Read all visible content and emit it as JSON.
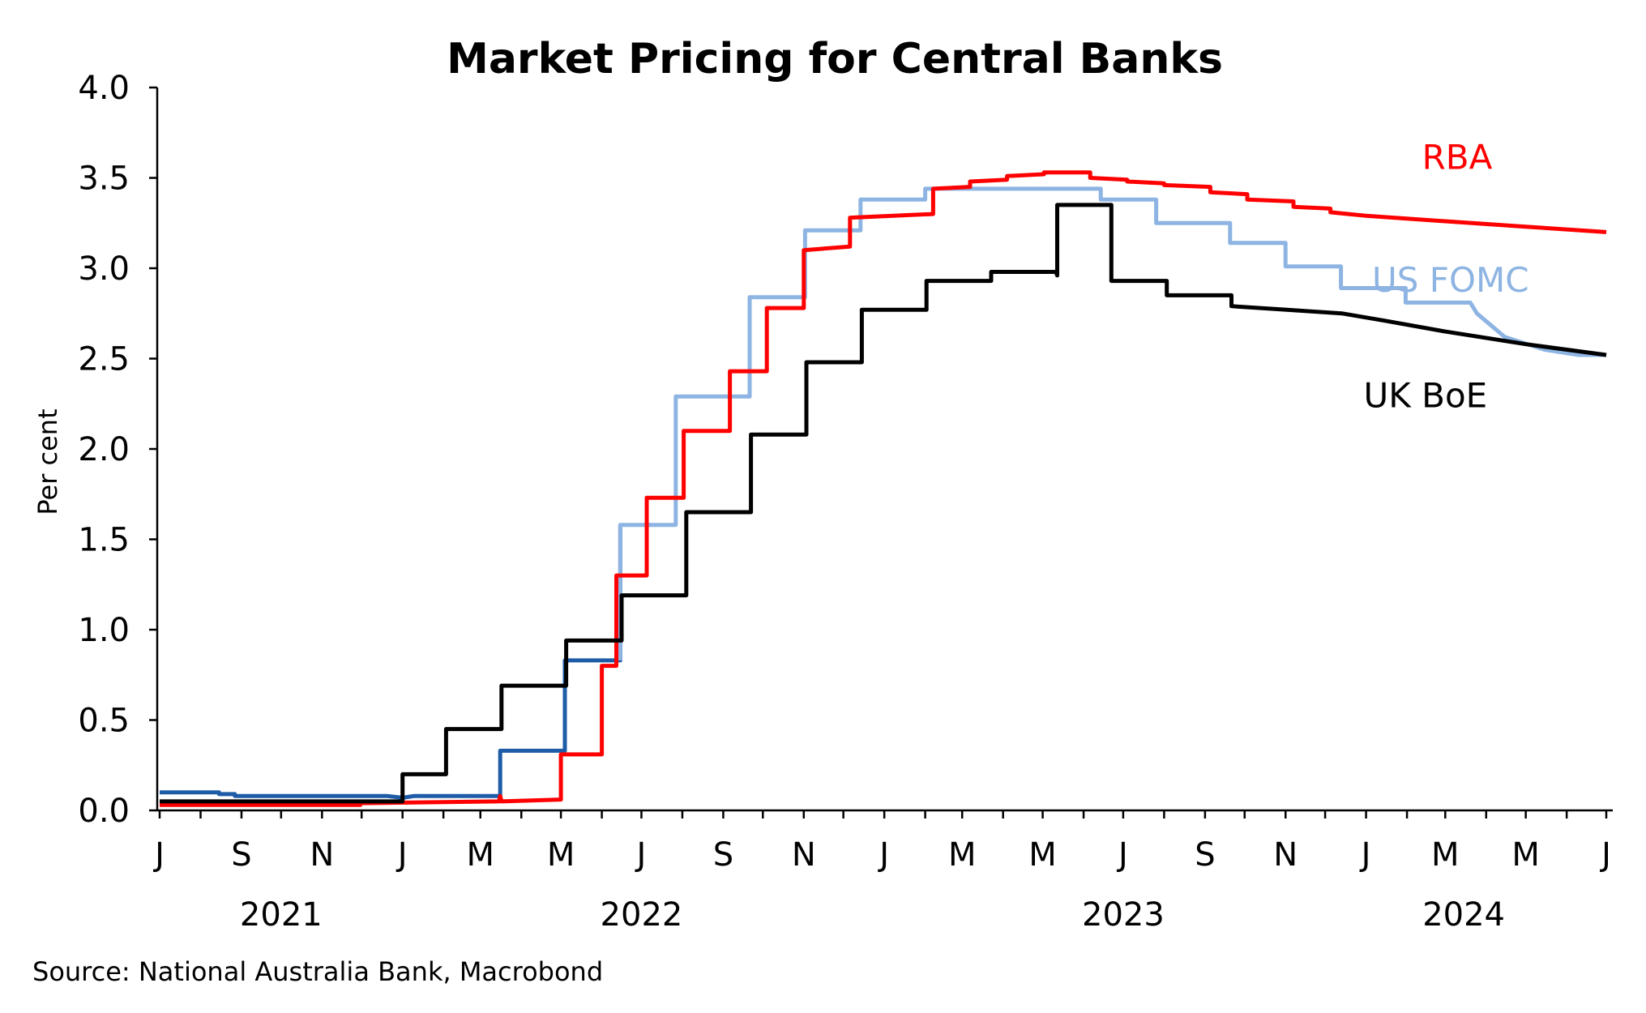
{
  "chart_data": {
    "type": "line",
    "title": "Market Pricing for Central Banks",
    "ylabel": "Per cent",
    "xlabel": "",
    "ylim": [
      0,
      4.0
    ],
    "yticks": [
      "0.0",
      "0.5",
      "1.0",
      "1.5",
      "2.0",
      "2.5",
      "3.0",
      "3.5",
      "4.0"
    ],
    "xlim": [
      "2021-07-01",
      "2024-07-01"
    ],
    "month_ticks": [
      {
        "date": "2021-07-01",
        "label": "J"
      },
      {
        "date": "2021-08-01",
        "label": ""
      },
      {
        "date": "2021-09-01",
        "label": "S"
      },
      {
        "date": "2021-10-01",
        "label": ""
      },
      {
        "date": "2021-11-01",
        "label": "N"
      },
      {
        "date": "2021-12-01",
        "label": ""
      },
      {
        "date": "2022-01-01",
        "label": "J"
      },
      {
        "date": "2022-02-01",
        "label": ""
      },
      {
        "date": "2022-03-01",
        "label": "M"
      },
      {
        "date": "2022-04-01",
        "label": ""
      },
      {
        "date": "2022-05-01",
        "label": "M"
      },
      {
        "date": "2022-06-01",
        "label": ""
      },
      {
        "date": "2022-07-01",
        "label": "J"
      },
      {
        "date": "2022-08-01",
        "label": ""
      },
      {
        "date": "2022-09-01",
        "label": "S"
      },
      {
        "date": "2022-10-01",
        "label": ""
      },
      {
        "date": "2022-11-01",
        "label": "N"
      },
      {
        "date": "2022-12-01",
        "label": ""
      },
      {
        "date": "2023-01-01",
        "label": "J"
      },
      {
        "date": "2023-02-01",
        "label": ""
      },
      {
        "date": "2023-03-01",
        "label": "M"
      },
      {
        "date": "2023-04-01",
        "label": ""
      },
      {
        "date": "2023-05-01",
        "label": "M"
      },
      {
        "date": "2023-06-01",
        "label": ""
      },
      {
        "date": "2023-07-01",
        "label": "J"
      },
      {
        "date": "2023-08-01",
        "label": ""
      },
      {
        "date": "2023-09-01",
        "label": "S"
      },
      {
        "date": "2023-10-01",
        "label": ""
      },
      {
        "date": "2023-11-01",
        "label": "N"
      },
      {
        "date": "2023-12-01",
        "label": ""
      },
      {
        "date": "2024-01-01",
        "label": "J"
      },
      {
        "date": "2024-02-01",
        "label": ""
      },
      {
        "date": "2024-03-01",
        "label": "M"
      },
      {
        "date": "2024-04-01",
        "label": ""
      },
      {
        "date": "2024-05-01",
        "label": "M"
      },
      {
        "date": "2024-06-01",
        "label": ""
      },
      {
        "date": "2024-07-01",
        "label": "J"
      }
    ],
    "year_labels": [
      {
        "label": "2021",
        "date": "2021-10-01"
      },
      {
        "label": "2022",
        "date": "2022-07-01"
      },
      {
        "label": "2023",
        "date": "2023-07-01"
      },
      {
        "label": "2024",
        "date": "2024-03-15"
      }
    ],
    "grid": false,
    "legend": "inline labels at right",
    "series": [
      {
        "name": "RBA",
        "color": "#ff0000",
        "label_date": "2024-03-10",
        "label_y": 3.55,
        "points": [
          [
            "2021-07-01",
            0.03
          ],
          [
            "2021-11-30",
            0.03
          ],
          [
            "2021-11-30",
            0.04
          ],
          [
            "2022-03-15",
            0.05
          ],
          [
            "2022-03-16",
            0.08
          ],
          [
            "2022-03-17",
            0.05
          ],
          [
            "2022-05-01",
            0.06
          ],
          [
            "2022-05-01",
            0.31
          ],
          [
            "2022-06-01",
            0.31
          ],
          [
            "2022-06-01",
            0.8
          ],
          [
            "2022-06-12",
            0.8
          ],
          [
            "2022-06-12",
            1.3
          ],
          [
            "2022-07-05",
            1.3
          ],
          [
            "2022-07-05",
            1.73
          ],
          [
            "2022-08-02",
            1.73
          ],
          [
            "2022-08-02",
            2.1
          ],
          [
            "2022-09-06",
            2.1
          ],
          [
            "2022-09-06",
            2.43
          ],
          [
            "2022-10-04",
            2.43
          ],
          [
            "2022-10-04",
            2.78
          ],
          [
            "2022-11-01",
            2.78
          ],
          [
            "2022-11-01",
            3.1
          ],
          [
            "2022-12-06",
            3.12
          ],
          [
            "2022-12-06",
            3.28
          ],
          [
            "2023-02-07",
            3.3
          ],
          [
            "2023-02-07",
            3.44
          ],
          [
            "2023-03-07",
            3.45
          ],
          [
            "2023-03-07",
            3.48
          ],
          [
            "2023-04-04",
            3.49
          ],
          [
            "2023-04-04",
            3.51
          ],
          [
            "2023-05-02",
            3.52
          ],
          [
            "2023-05-02",
            3.53
          ],
          [
            "2023-06-06",
            3.53
          ],
          [
            "2023-06-06",
            3.5
          ],
          [
            "2023-07-04",
            3.49
          ],
          [
            "2023-07-04",
            3.48
          ],
          [
            "2023-08-01",
            3.47
          ],
          [
            "2023-08-01",
            3.46
          ],
          [
            "2023-09-05",
            3.45
          ],
          [
            "2023-09-05",
            3.42
          ],
          [
            "2023-10-03",
            3.41
          ],
          [
            "2023-10-03",
            3.38
          ],
          [
            "2023-11-07",
            3.37
          ],
          [
            "2023-11-07",
            3.34
          ],
          [
            "2023-12-05",
            3.33
          ],
          [
            "2023-12-05",
            3.31
          ],
          [
            "2024-01-01",
            3.29
          ],
          [
            "2024-03-01",
            3.26
          ],
          [
            "2024-05-01",
            3.23
          ],
          [
            "2024-07-01",
            3.2
          ]
        ]
      },
      {
        "name": "US FOMC",
        "color": "#8db4e2",
        "early_color": "#1f5ca8",
        "early_until": "2022-07-01",
        "label_date": "2024-03-05",
        "label_y": 2.87,
        "points": [
          [
            "2021-07-01",
            0.1
          ],
          [
            "2021-08-15",
            0.1
          ],
          [
            "2021-08-15",
            0.09
          ],
          [
            "2021-08-27",
            0.09
          ],
          [
            "2021-08-27",
            0.08
          ],
          [
            "2021-12-20",
            0.08
          ],
          [
            "2022-01-01",
            0.07
          ],
          [
            "2022-01-10",
            0.08
          ],
          [
            "2022-03-16",
            0.08
          ],
          [
            "2022-03-16",
            0.33
          ],
          [
            "2022-05-04",
            0.33
          ],
          [
            "2022-05-04",
            0.83
          ],
          [
            "2022-06-15",
            0.83
          ],
          [
            "2022-06-15",
            1.58
          ],
          [
            "2022-07-27",
            1.58
          ],
          [
            "2022-07-27",
            2.29
          ],
          [
            "2022-09-21",
            2.29
          ],
          [
            "2022-09-21",
            2.84
          ],
          [
            "2022-11-02",
            2.84
          ],
          [
            "2022-11-02",
            3.21
          ],
          [
            "2022-12-14",
            3.21
          ],
          [
            "2022-12-14",
            3.38
          ],
          [
            "2023-02-01",
            3.38
          ],
          [
            "2023-02-01",
            3.44
          ],
          [
            "2023-06-14",
            3.44
          ],
          [
            "2023-06-14",
            3.38
          ],
          [
            "2023-07-26",
            3.38
          ],
          [
            "2023-07-26",
            3.25
          ],
          [
            "2023-09-20",
            3.25
          ],
          [
            "2023-09-20",
            3.14
          ],
          [
            "2023-11-01",
            3.14
          ],
          [
            "2023-11-01",
            3.01
          ],
          [
            "2023-12-13",
            3.01
          ],
          [
            "2023-12-13",
            2.89
          ],
          [
            "2024-01-31",
            2.89
          ],
          [
            "2024-01-31",
            2.81
          ],
          [
            "2024-03-20",
            2.81
          ],
          [
            "2024-03-25",
            2.75
          ],
          [
            "2024-04-15",
            2.62
          ],
          [
            "2024-05-15",
            2.55
          ],
          [
            "2024-06-10",
            2.52
          ],
          [
            "2024-07-01",
            2.52
          ]
        ]
      },
      {
        "name": "UK BoE",
        "color": "#000000",
        "label_date": "2024-02-15",
        "label_y": 2.23,
        "points": [
          [
            "2021-07-01",
            0.05
          ],
          [
            "2022-01-01",
            0.05
          ],
          [
            "2022-01-01",
            0.2
          ],
          [
            "2022-02-03",
            0.2
          ],
          [
            "2022-02-03",
            0.45
          ],
          [
            "2022-03-17",
            0.45
          ],
          [
            "2022-03-17",
            0.69
          ],
          [
            "2022-05-05",
            0.69
          ],
          [
            "2022-05-05",
            0.94
          ],
          [
            "2022-06-16",
            0.94
          ],
          [
            "2022-06-16",
            1.19
          ],
          [
            "2022-08-04",
            1.19
          ],
          [
            "2022-08-04",
            1.65
          ],
          [
            "2022-09-22",
            1.65
          ],
          [
            "2022-09-22",
            2.08
          ],
          [
            "2022-11-03",
            2.08
          ],
          [
            "2022-11-03",
            2.48
          ],
          [
            "2022-12-15",
            2.48
          ],
          [
            "2022-12-15",
            2.77
          ],
          [
            "2023-02-02",
            2.77
          ],
          [
            "2023-02-02",
            2.93
          ],
          [
            "2023-03-23",
            2.93
          ],
          [
            "2023-03-23",
            2.98
          ],
          [
            "2023-05-11",
            2.98
          ],
          [
            "2023-05-12",
            2.96
          ],
          [
            "2023-05-12",
            3.35
          ],
          [
            "2023-06-22",
            3.35
          ],
          [
            "2023-06-22",
            2.93
          ],
          [
            "2023-08-03",
            2.93
          ],
          [
            "2023-08-03",
            2.85
          ],
          [
            "2023-09-21",
            2.85
          ],
          [
            "2023-09-21",
            2.79
          ],
          [
            "2023-11-02",
            2.77
          ],
          [
            "2023-12-14",
            2.75
          ],
          [
            "2024-01-15",
            2.71
          ],
          [
            "2024-03-01",
            2.65
          ],
          [
            "2024-05-01",
            2.58
          ],
          [
            "2024-07-01",
            2.52
          ]
        ]
      }
    ]
  },
  "footer": {
    "source": "Source: National Australia Bank, Macrobond"
  }
}
